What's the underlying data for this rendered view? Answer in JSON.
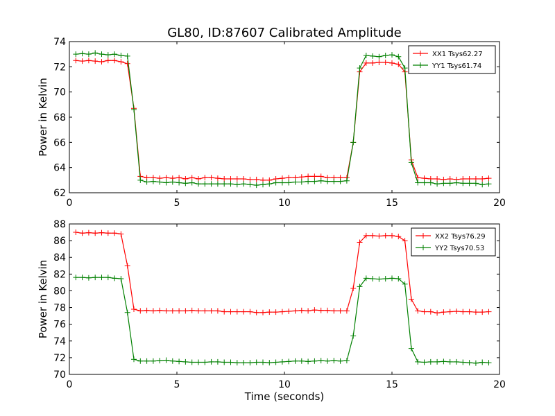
{
  "figure": {
    "title": "GL80, ID:87607 Calibrated Amplitude",
    "xlabel": "Time (seconds)"
  },
  "chart_data": [
    {
      "type": "line",
      "title": "GL80, ID:87607 Calibrated Amplitude",
      "xlabel": "",
      "ylabel": "Power in Kelvin",
      "xlim": [
        0,
        20
      ],
      "ylim": [
        62,
        74
      ],
      "xticks": [
        0,
        5,
        10,
        15,
        20
      ],
      "yticks": [
        62,
        64,
        66,
        68,
        70,
        72,
        74
      ],
      "grid": false,
      "legend": "top-right",
      "x": [
        0.3,
        0.6,
        0.9,
        1.2,
        1.5,
        1.8,
        2.1,
        2.4,
        2.7,
        3.0,
        3.3,
        3.6,
        3.9,
        4.2,
        4.5,
        4.8,
        5.1,
        5.4,
        5.7,
        6.0,
        6.3,
        6.6,
        6.9,
        7.2,
        7.5,
        7.8,
        8.1,
        8.4,
        8.7,
        9.0,
        9.3,
        9.6,
        9.9,
        10.2,
        10.5,
        10.8,
        11.1,
        11.4,
        11.7,
        12.0,
        12.3,
        12.6,
        12.9,
        13.2,
        13.5,
        13.8,
        14.1,
        14.4,
        14.7,
        15.0,
        15.3,
        15.6,
        15.9,
        16.2,
        16.5,
        16.8,
        17.1,
        17.4,
        17.7,
        18.0,
        18.3,
        18.6,
        18.9,
        19.2,
        19.5
      ],
      "series": [
        {
          "name": "XX1 Tsys62.27",
          "color": "#ff0000",
          "values": [
            72.5,
            72.45,
            72.5,
            72.45,
            72.4,
            72.5,
            72.5,
            72.4,
            72.25,
            68.7,
            63.3,
            63.2,
            63.2,
            63.15,
            63.2,
            63.15,
            63.2,
            63.1,
            63.2,
            63.1,
            63.2,
            63.2,
            63.15,
            63.1,
            63.1,
            63.1,
            63.1,
            63.05,
            63.05,
            63.0,
            63.0,
            63.1,
            63.15,
            63.2,
            63.2,
            63.25,
            63.3,
            63.3,
            63.3,
            63.2,
            63.2,
            63.2,
            63.2,
            66.0,
            71.6,
            72.3,
            72.3,
            72.35,
            72.35,
            72.3,
            72.2,
            71.6,
            64.6,
            63.2,
            63.15,
            63.1,
            63.1,
            63.05,
            63.1,
            63.05,
            63.1,
            63.1,
            63.1,
            63.1,
            63.15
          ]
        },
        {
          "name": "YY1 Tsys61.74",
          "color": "#008000",
          "values": [
            73.0,
            73.05,
            73.0,
            73.1,
            73.0,
            72.95,
            73.0,
            72.9,
            72.85,
            68.6,
            63.0,
            62.85,
            62.9,
            62.85,
            62.8,
            62.85,
            62.8,
            62.75,
            62.8,
            62.7,
            62.7,
            62.7,
            62.7,
            62.7,
            62.7,
            62.65,
            62.7,
            62.65,
            62.6,
            62.65,
            62.7,
            62.8,
            62.8,
            62.8,
            62.85,
            62.85,
            62.9,
            62.9,
            62.95,
            62.9,
            62.9,
            62.9,
            62.95,
            66.0,
            71.9,
            72.9,
            72.85,
            72.8,
            72.9,
            72.95,
            72.8,
            71.9,
            64.4,
            62.8,
            62.8,
            62.8,
            62.7,
            62.75,
            62.75,
            62.8,
            62.75,
            62.75,
            62.75,
            62.65,
            62.7
          ]
        }
      ]
    },
    {
      "type": "line",
      "title": "",
      "xlabel": "Time (seconds)",
      "ylabel": "Power in Kelvin",
      "xlim": [
        0,
        20
      ],
      "ylim": [
        70,
        88
      ],
      "xticks": [
        0,
        5,
        10,
        15,
        20
      ],
      "yticks": [
        70,
        72,
        74,
        76,
        78,
        80,
        82,
        84,
        86,
        88
      ],
      "grid": false,
      "legend": "top-right",
      "x": [
        0.3,
        0.6,
        0.9,
        1.2,
        1.5,
        1.8,
        2.1,
        2.4,
        2.7,
        3.0,
        3.3,
        3.6,
        3.9,
        4.2,
        4.5,
        4.8,
        5.1,
        5.4,
        5.7,
        6.0,
        6.3,
        6.6,
        6.9,
        7.2,
        7.5,
        7.8,
        8.1,
        8.4,
        8.7,
        9.0,
        9.3,
        9.6,
        9.9,
        10.2,
        10.5,
        10.8,
        11.1,
        11.4,
        11.7,
        12.0,
        12.3,
        12.6,
        12.9,
        13.2,
        13.5,
        13.8,
        14.1,
        14.4,
        14.7,
        15.0,
        15.3,
        15.6,
        15.9,
        16.2,
        16.5,
        16.8,
        17.1,
        17.4,
        17.7,
        18.0,
        18.3,
        18.6,
        18.9,
        19.2,
        19.5
      ],
      "series": [
        {
          "name": "XX2 Tsys76.29",
          "color": "#ff0000",
          "values": [
            87.0,
            86.9,
            86.95,
            86.9,
            86.95,
            86.9,
            86.9,
            86.8,
            83.0,
            77.8,
            77.6,
            77.65,
            77.6,
            77.65,
            77.6,
            77.6,
            77.6,
            77.6,
            77.65,
            77.6,
            77.6,
            77.6,
            77.6,
            77.5,
            77.5,
            77.5,
            77.5,
            77.5,
            77.4,
            77.4,
            77.45,
            77.45,
            77.5,
            77.55,
            77.6,
            77.65,
            77.6,
            77.7,
            77.65,
            77.65,
            77.6,
            77.6,
            77.6,
            80.3,
            85.8,
            86.6,
            86.6,
            86.55,
            86.6,
            86.6,
            86.5,
            86.0,
            79.0,
            77.6,
            77.5,
            77.5,
            77.35,
            77.45,
            77.5,
            77.55,
            77.5,
            77.5,
            77.45,
            77.45,
            77.5
          ]
        },
        {
          "name": "YY2 Tsys70.53",
          "color": "#008000",
          "values": [
            81.6,
            81.6,
            81.55,
            81.6,
            81.6,
            81.6,
            81.5,
            81.45,
            77.4,
            71.8,
            71.6,
            71.6,
            71.6,
            71.65,
            71.7,
            71.6,
            71.55,
            71.5,
            71.45,
            71.45,
            71.45,
            71.5,
            71.5,
            71.45,
            71.45,
            71.4,
            71.4,
            71.4,
            71.45,
            71.45,
            71.4,
            71.45,
            71.5,
            71.55,
            71.6,
            71.6,
            71.55,
            71.6,
            71.65,
            71.6,
            71.65,
            71.6,
            71.65,
            74.6,
            80.5,
            81.5,
            81.45,
            81.4,
            81.45,
            81.5,
            81.45,
            80.8,
            73.1,
            71.5,
            71.45,
            71.5,
            71.5,
            71.55,
            71.5,
            71.5,
            71.45,
            71.4,
            71.35,
            71.45,
            71.4
          ]
        }
      ]
    }
  ]
}
